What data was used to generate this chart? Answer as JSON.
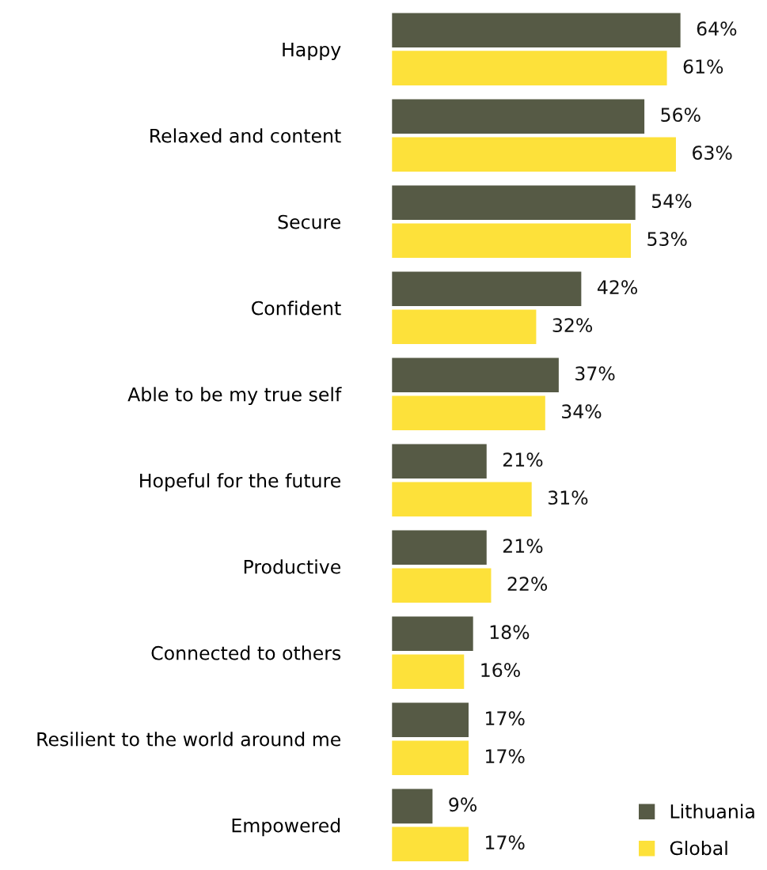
{
  "chart_data": {
    "type": "bar",
    "orientation": "horizontal",
    "categories": [
      "Happy",
      "Relaxed and content",
      "Secure",
      "Confident",
      "Able to be my true self",
      "Hopeful for the future",
      "Productive",
      "Connected to others",
      "Resilient to the world around me",
      "Empowered"
    ],
    "series": [
      {
        "name": "Lithuania",
        "color": "#565a45",
        "values": [
          64,
          56,
          54,
          42,
          37,
          21,
          21,
          18,
          17,
          9
        ],
        "value_labels": [
          "64%",
          "56%",
          "54%",
          "42%",
          "37%",
          "21%",
          "21%",
          "18%",
          "17%",
          "9%"
        ]
      },
      {
        "name": "Global",
        "color": "#fde13a",
        "values": [
          61,
          63,
          53,
          32,
          34,
          31,
          22,
          16,
          17,
          17
        ],
        "value_labels": [
          "61%",
          "63%",
          "53%",
          "32%",
          "34%",
          "31%",
          "22%",
          "16%",
          "17%",
          "17%"
        ]
      }
    ],
    "tick_labels": "y",
    "grid": false,
    "legend": "bottom right"
  }
}
